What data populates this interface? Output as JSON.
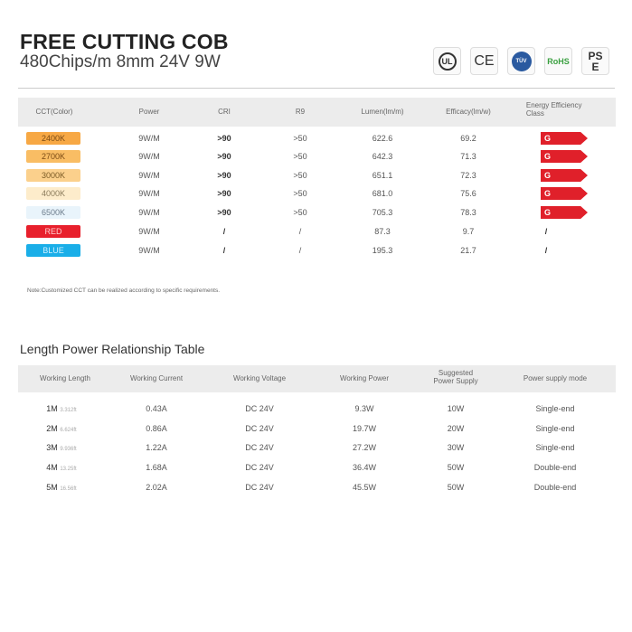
{
  "header": {
    "title": "FREE CUTTING COB",
    "subtitle": "480Chips/m 8mm 24V 9W"
  },
  "certifications": [
    {
      "icon": "ul-icon",
      "label": "UL"
    },
    {
      "icon": "ce-icon",
      "label": "CE"
    },
    {
      "icon": "tuv-icon",
      "label": "TÜV"
    },
    {
      "icon": "rohs-icon",
      "label": "RoHS"
    },
    {
      "icon": "pse-icon",
      "label": "PSE"
    }
  ],
  "table1": {
    "headers": [
      "CCT(Color)",
      "Power",
      "CRI",
      "R9",
      "Lumen(lm/m)",
      "Efficacy(lm/w)",
      "Energy Efficiency Class"
    ],
    "rows": [
      {
        "cct": "2400K",
        "color": "#f7a844",
        "text": "#7a4a14",
        "power": "9W/M",
        "cri": ">90",
        "r9": ">50",
        "lumen": "622.6",
        "efficacy": "69.2",
        "class": "G"
      },
      {
        "cct": "2700K",
        "color": "#f9bd64",
        "text": "#7a4a14",
        "power": "9W/M",
        "cri": ">90",
        "r9": ">50",
        "lumen": "642.3",
        "efficacy": "71.3",
        "class": "G"
      },
      {
        "cct": "3000K",
        "color": "#fbd08c",
        "text": "#7a5a24",
        "power": "9W/M",
        "cri": ">90",
        "r9": ">50",
        "lumen": "651.1",
        "efficacy": "72.3",
        "class": "G"
      },
      {
        "cct": "4000K",
        "color": "#fdeccb",
        "text": "#8a7a5a",
        "power": "9W/M",
        "cri": ">90",
        "r9": ">50",
        "lumen": "681.0",
        "efficacy": "75.6",
        "class": "G"
      },
      {
        "cct": "6500K",
        "color": "#e9f4fb",
        "text": "#6a7a8a",
        "power": "9W/M",
        "cri": ">90",
        "r9": ">50",
        "lumen": "705.3",
        "efficacy": "78.3",
        "class": "G"
      },
      {
        "cct": "RED",
        "color": "#e8202c",
        "text": "#ffd0d0",
        "power": "9W/M",
        "cri": "/",
        "r9": "/",
        "lumen": "87.3",
        "efficacy": "9.7",
        "class": "/"
      },
      {
        "cct": "BLUE",
        "color": "#1aaee8",
        "text": "#d0f0ff",
        "power": "9W/M",
        "cri": "/",
        "r9": "/",
        "lumen": "195.3",
        "efficacy": "21.7",
        "class": "/"
      }
    ],
    "class_color": "#e0202a"
  },
  "note": "Note:Customized CCT can be realized according to specific requirements.",
  "table2": {
    "title": "Length Power Relationship Table",
    "headers": [
      "Working Length",
      "Working Current",
      "Working Voltage",
      "Working Power",
      "Suggested Power Supply",
      "Power supply mode"
    ],
    "rows": [
      {
        "len": "1M",
        "ft": "3.312ft",
        "current": "0.43A",
        "voltage": "DC 24V",
        "power": "9.3W",
        "supply": "10W",
        "mode": "Single-end"
      },
      {
        "len": "2M",
        "ft": "6.624ft",
        "current": "0.86A",
        "voltage": "DC 24V",
        "power": "19.7W",
        "supply": "20W",
        "mode": "Single-end"
      },
      {
        "len": "3M",
        "ft": "9.936ft",
        "current": "1.22A",
        "voltage": "DC 24V",
        "power": "27.2W",
        "supply": "30W",
        "mode": "Single-end"
      },
      {
        "len": "4M",
        "ft": "13.25ft",
        "current": "1.68A",
        "voltage": "DC 24V",
        "power": "36.4W",
        "supply": "50W",
        "mode": "Double-end"
      },
      {
        "len": "5M",
        "ft": "16.56ft",
        "current": "2.02A",
        "voltage": "DC 24V",
        "power": "45.5W",
        "supply": "50W",
        "mode": "Double-end"
      }
    ]
  }
}
